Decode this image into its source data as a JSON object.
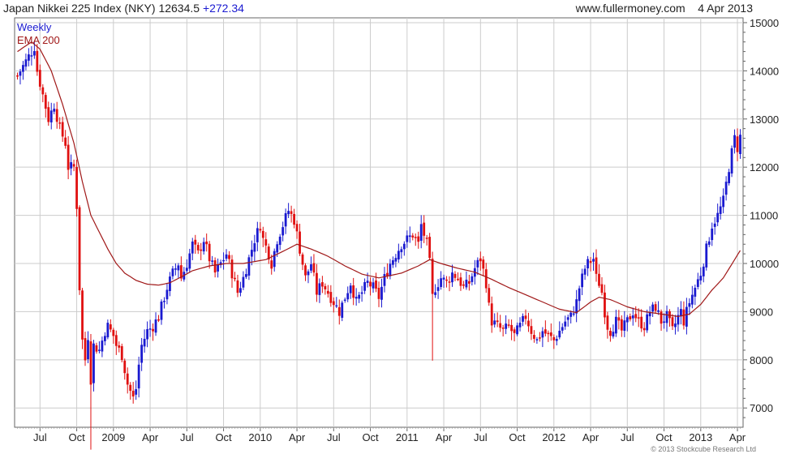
{
  "header": {
    "index_name": "Japan Nikkei 225 Index (NKY)",
    "last": "12634.5",
    "change": "+272.34",
    "source": "www.fullermoney.com",
    "date": "4 Apr 2013"
  },
  "copyright": "© 2013 Stockcube Research Ltd",
  "colors": {
    "up": "#1a1ad0",
    "down": "#e01010",
    "ema": "#a01818",
    "grid": "#cccccc",
    "axis": "#666666"
  },
  "chart_data": {
    "type": "line",
    "legend": [
      {
        "name": "Weekly",
        "color": "#1a1ad0"
      },
      {
        "name": "EMA 200",
        "color": "#a01818"
      }
    ],
    "ylim": [
      6600,
      15100
    ],
    "y_ticks": [
      7000,
      8000,
      9000,
      10000,
      11000,
      12000,
      13000,
      14000,
      15000
    ],
    "x_ticks": [
      {
        "t": 8,
        "label": "Jul"
      },
      {
        "t": 21,
        "label": "Oct"
      },
      {
        "t": 34,
        "label": "2009"
      },
      {
        "t": 47,
        "label": "Apr"
      },
      {
        "t": 60,
        "label": "Jul"
      },
      {
        "t": 73,
        "label": "Oct"
      },
      {
        "t": 86,
        "label": "2010"
      },
      {
        "t": 99,
        "label": "Apr"
      },
      {
        "t": 112,
        "label": "Jul"
      },
      {
        "t": 125,
        "label": "Oct"
      },
      {
        "t": 138,
        "label": "2011"
      },
      {
        "t": 151,
        "label": "Apr"
      },
      {
        "t": 164,
        "label": "Jul"
      },
      {
        "t": 177,
        "label": "Oct"
      },
      {
        "t": 190,
        "label": "2012"
      },
      {
        "t": 203,
        "label": "Apr"
      },
      {
        "t": 216,
        "label": "Jul"
      },
      {
        "t": 229,
        "label": "Oct"
      },
      {
        "t": 242,
        "label": "2013"
      },
      {
        "t": 255,
        "label": "Apr"
      }
    ],
    "t_range": [
      -1,
      257
    ],
    "price_anchors": [
      [
        0,
        13900
      ],
      [
        2,
        14100
      ],
      [
        4,
        14300
      ],
      [
        6,
        14500
      ],
      [
        7,
        14000
      ],
      [
        9,
        13500
      ],
      [
        11,
        13000
      ],
      [
        13,
        13300
      ],
      [
        15,
        12800
      ],
      [
        17,
        12500
      ],
      [
        18,
        12000
      ],
      [
        20,
        12000
      ],
      [
        21,
        11200
      ],
      [
        22,
        9500
      ],
      [
        23,
        8400
      ],
      [
        24,
        8000
      ],
      [
        25,
        8500
      ],
      [
        26,
        7600
      ],
      [
        27,
        8300
      ],
      [
        29,
        8200
      ],
      [
        30,
        8400
      ],
      [
        31,
        8600
      ],
      [
        32,
        8700
      ],
      [
        34,
        8500
      ],
      [
        35,
        8300
      ],
      [
        37,
        8100
      ],
      [
        38,
        7800
      ],
      [
        39,
        7500
      ],
      [
        41,
        7200
      ],
      [
        42,
        7400
      ],
      [
        43,
        7900
      ],
      [
        44,
        8300
      ],
      [
        46,
        8600
      ],
      [
        48,
        8700
      ],
      [
        50,
        8900
      ],
      [
        52,
        9300
      ],
      [
        53,
        9500
      ],
      [
        55,
        9800
      ],
      [
        57,
        10000
      ],
      [
        58,
        9700
      ],
      [
        60,
        10000
      ],
      [
        62,
        10400
      ],
      [
        64,
        10200
      ],
      [
        66,
        10500
      ],
      [
        68,
        10100
      ],
      [
        70,
        9800
      ],
      [
        72,
        10000
      ],
      [
        74,
        10200
      ],
      [
        76,
        9800
      ],
      [
        78,
        9400
      ],
      [
        80,
        9700
      ],
      [
        82,
        10100
      ],
      [
        84,
        10500
      ],
      [
        86,
        10800
      ],
      [
        87,
        10500
      ],
      [
        89,
        10200
      ],
      [
        90,
        10000
      ],
      [
        92,
        10500
      ],
      [
        94,
        10800
      ],
      [
        96,
        11100
      ],
      [
        98,
        10900
      ],
      [
        99,
        10600
      ],
      [
        100,
        10300
      ],
      [
        101,
        10000
      ],
      [
        102,
        9700
      ],
      [
        104,
        10000
      ],
      [
        106,
        9400
      ],
      [
        108,
        9600
      ],
      [
        110,
        9400
      ],
      [
        112,
        9200
      ],
      [
        114,
        9000
      ],
      [
        116,
        9300
      ],
      [
        118,
        9600
      ],
      [
        119,
        9400
      ],
      [
        120,
        9200
      ],
      [
        122,
        9400
      ],
      [
        124,
        9600
      ],
      [
        126,
        9500
      ],
      [
        128,
        9300
      ],
      [
        130,
        9700
      ],
      [
        132,
        10000
      ],
      [
        134,
        10200
      ],
      [
        136,
        10400
      ],
      [
        138,
        10500
      ],
      [
        140,
        10600
      ],
      [
        142,
        10400
      ],
      [
        143,
        10800
      ],
      [
        144,
        10600
      ],
      [
        145,
        10400
      ],
      [
        146,
        10000
      ],
      [
        147,
        9300
      ],
      [
        148,
        9500
      ],
      [
        150,
        9700
      ],
      [
        152,
        9600
      ],
      [
        154,
        9800
      ],
      [
        156,
        9700
      ],
      [
        158,
        9500
      ],
      [
        160,
        9600
      ],
      [
        162,
        9900
      ],
      [
        164,
        10100
      ],
      [
        166,
        9600
      ],
      [
        167,
        9100
      ],
      [
        168,
        8800
      ],
      [
        170,
        8700
      ],
      [
        172,
        8600
      ],
      [
        174,
        8700
      ],
      [
        176,
        8500
      ],
      [
        178,
        8700
      ],
      [
        180,
        8900
      ],
      [
        182,
        8600
      ],
      [
        184,
        8400
      ],
      [
        186,
        8600
      ],
      [
        188,
        8500
      ],
      [
        190,
        8400
      ],
      [
        192,
        8600
      ],
      [
        194,
        8800
      ],
      [
        196,
        8900
      ],
      [
        198,
        9200
      ],
      [
        199,
        9500
      ],
      [
        200,
        9700
      ],
      [
        201,
        9900
      ],
      [
        202,
        10000
      ],
      [
        204,
        10100
      ],
      [
        205,
        9700
      ],
      [
        206,
        9600
      ],
      [
        207,
        9400
      ],
      [
        208,
        9000
      ],
      [
        209,
        8700
      ],
      [
        210,
        8600
      ],
      [
        212,
        8800
      ],
      [
        214,
        8600
      ],
      [
        216,
        8800
      ],
      [
        218,
        9000
      ],
      [
        220,
        8800
      ],
      [
        222,
        8700
      ],
      [
        224,
        9000
      ],
      [
        226,
        9100
      ],
      [
        228,
        8800
      ],
      [
        230,
        8900
      ],
      [
        232,
        8600
      ],
      [
        234,
        8900
      ],
      [
        235,
        9000
      ],
      [
        236,
        8800
      ],
      [
        238,
        9200
      ],
      [
        240,
        9500
      ],
      [
        242,
        9800
      ],
      [
        244,
        10300
      ],
      [
        246,
        10800
      ],
      [
        248,
        11000
      ],
      [
        250,
        11300
      ],
      [
        252,
        12000
      ],
      [
        253,
        12300
      ],
      [
        254,
        12600
      ],
      [
        255,
        12400
      ],
      [
        256,
        12634.5
      ]
    ],
    "ema_anchors": [
      [
        0,
        14400
      ],
      [
        5,
        14600
      ],
      [
        8,
        14450
      ],
      [
        12,
        14000
      ],
      [
        16,
        13300
      ],
      [
        20,
        12500
      ],
      [
        23,
        11700
      ],
      [
        26,
        11000
      ],
      [
        29,
        10650
      ],
      [
        32,
        10300
      ],
      [
        35,
        10000
      ],
      [
        38,
        9800
      ],
      [
        42,
        9650
      ],
      [
        46,
        9570
      ],
      [
        50,
        9550
      ],
      [
        54,
        9600
      ],
      [
        58,
        9720
      ],
      [
        62,
        9850
      ],
      [
        68,
        9950
      ],
      [
        74,
        10000
      ],
      [
        80,
        10000
      ],
      [
        88,
        10080
      ],
      [
        94,
        10250
      ],
      [
        99,
        10400
      ],
      [
        104,
        10300
      ],
      [
        110,
        10150
      ],
      [
        116,
        9950
      ],
      [
        122,
        9780
      ],
      [
        128,
        9700
      ],
      [
        136,
        9800
      ],
      [
        142,
        9950
      ],
      [
        146,
        10080
      ],
      [
        150,
        10000
      ],
      [
        156,
        9900
      ],
      [
        162,
        9820
      ],
      [
        168,
        9670
      ],
      [
        174,
        9500
      ],
      [
        180,
        9350
      ],
      [
        186,
        9200
      ],
      [
        192,
        9050
      ],
      [
        198,
        8980
      ],
      [
        203,
        9200
      ],
      [
        206,
        9300
      ],
      [
        210,
        9250
      ],
      [
        216,
        9100
      ],
      [
        222,
        9000
      ],
      [
        228,
        8950
      ],
      [
        234,
        8900
      ],
      [
        238,
        8950
      ],
      [
        242,
        9150
      ],
      [
        246,
        9450
      ],
      [
        250,
        9700
      ],
      [
        256,
        10270
      ]
    ]
  }
}
